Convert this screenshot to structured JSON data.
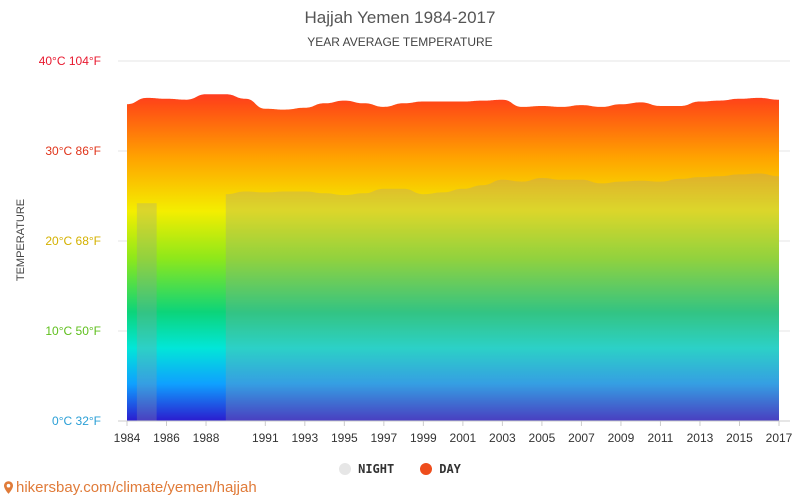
{
  "chart_data": {
    "type": "area",
    "title": "Hajjah Yemen 1984-2017",
    "subtitle": "YEAR AVERAGE TEMPERATURE",
    "ylabel": "TEMPERATURE",
    "xlabel": "",
    "ylim": [
      0,
      40
    ],
    "y_ticks": [
      {
        "label": "0°C 32°F",
        "value": 0,
        "color": "#2a9fd6"
      },
      {
        "label": "10°C 50°F",
        "value": 10,
        "color": "#5fbf1d"
      },
      {
        "label": "20°C 68°F",
        "value": 20,
        "color": "#d4b100"
      },
      {
        "label": "30°C 86°F",
        "value": 30,
        "color": "#e0341a"
      },
      {
        "label": "40°C 104°F",
        "value": 40,
        "color": "#e8182e"
      }
    ],
    "x_ticks": [
      "1984",
      "1986",
      "1988",
      "1991",
      "1993",
      "1995",
      "1997",
      "1999",
      "2001",
      "2003",
      "2005",
      "2007",
      "2009",
      "2011",
      "2013",
      "2015",
      "2017"
    ],
    "x": [
      1984,
      1985,
      1986,
      1987,
      1988,
      1989,
      1990,
      1991,
      1992,
      1993,
      1994,
      1995,
      1996,
      1997,
      1998,
      1999,
      2000,
      2001,
      2002,
      2003,
      2004,
      2005,
      2006,
      2007,
      2008,
      2009,
      2010,
      2011,
      2012,
      2013,
      2014,
      2015,
      2016,
      2017
    ],
    "series": [
      {
        "name": "NIGHT",
        "color": "#e6e6e6",
        "values": [
          null,
          24.2,
          null,
          null,
          null,
          25.2,
          25.5,
          25.4,
          25.5,
          25.5,
          25.3,
          25.1,
          25.3,
          25.8,
          25.8,
          25.2,
          25.4,
          25.8,
          26.2,
          26.8,
          26.6,
          27.0,
          26.8,
          26.8,
          26.4,
          26.6,
          26.7,
          26.6,
          26.9,
          27.1,
          27.2,
          27.4,
          27.5,
          27.2
        ]
      },
      {
        "name": "DAY",
        "color": "#ee4d1c",
        "values": [
          35.2,
          35.9,
          35.8,
          35.7,
          36.3,
          36.3,
          35.8,
          34.7,
          34.6,
          34.8,
          35.3,
          35.6,
          35.3,
          34.9,
          35.3,
          35.5,
          35.5,
          35.5,
          35.6,
          35.7,
          34.9,
          35.0,
          34.9,
          35.1,
          34.9,
          35.2,
          35.4,
          35.0,
          35.0,
          35.5,
          35.6,
          35.8,
          35.9,
          35.7
        ]
      }
    ],
    "legend_position": "bottom",
    "grid": true
  },
  "footer": {
    "text": "hikersbay.com/climate/yemen/hajjah"
  }
}
